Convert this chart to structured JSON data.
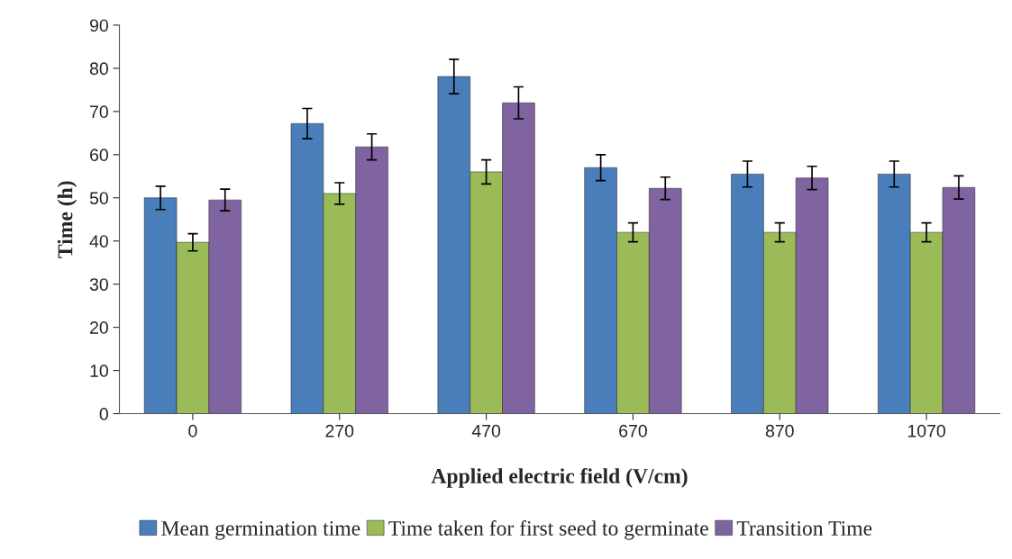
{
  "chart_data": {
    "type": "bar",
    "xlabel": "Applied electric field (V/cm)",
    "ylabel": "Time (h)",
    "categories": [
      "0",
      "270",
      "470",
      "670",
      "870",
      "1070"
    ],
    "series": [
      {
        "name": "Mean germination time",
        "color": "#4a7ebb",
        "values": [
          50,
          67.2,
          78.1,
          57,
          55.5,
          55.5
        ],
        "errors": [
          2.7,
          3.5,
          4,
          3,
          3,
          3
        ]
      },
      {
        "name": "Time taken for first seed to germinate",
        "color": "#9bbb59",
        "values": [
          39.7,
          51,
          56,
          42,
          42,
          42
        ],
        "errors": [
          2,
          2.5,
          2.8,
          2.2,
          2.2,
          2.2
        ]
      },
      {
        "name": "Transition Time",
        "color": "#8064a2",
        "values": [
          49.5,
          61.8,
          72,
          52.2,
          54.6,
          52.4
        ],
        "errors": [
          2.5,
          3,
          3.7,
          2.6,
          2.7,
          2.7
        ]
      }
    ],
    "ylim": [
      0,
      90
    ],
    "yticks": [
      0,
      10,
      20,
      30,
      40,
      50,
      60,
      70,
      80,
      90
    ],
    "grid": false,
    "legend": "bottom"
  }
}
